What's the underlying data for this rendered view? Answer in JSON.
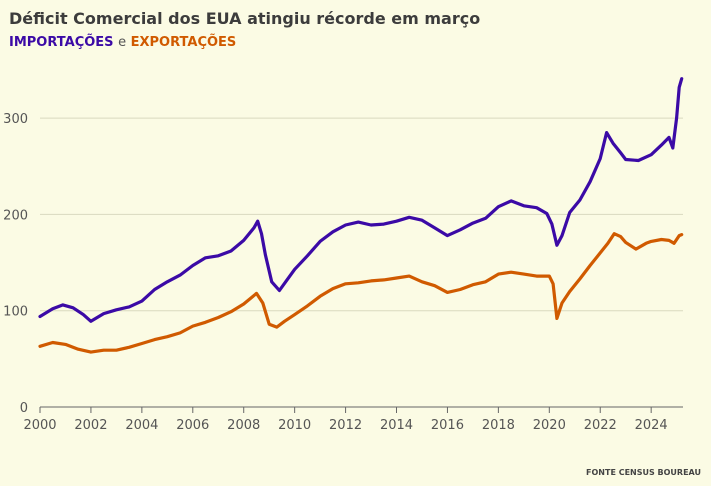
{
  "header": {
    "title": "Déficit Comercial dos EUA atingiu récorde em março",
    "series_import_label": "IMPORTAÇÕES",
    "connector": "e",
    "series_export_label": "EXPORTAÇÕES"
  },
  "footer": {
    "source": "FONTE CENSUS BOUREAU"
  },
  "colors": {
    "imports": "#3b0aa6",
    "exports": "#d05a00",
    "background": "#fbfbe4",
    "grid": "#d9d9bf"
  },
  "chart_data": {
    "type": "line",
    "title": "Déficit Comercial dos EUA atingiu récorde em março",
    "xlabel": "",
    "ylabel": "",
    "xlim": [
      2000,
      2025.25
    ],
    "ylim": [
      0,
      350
    ],
    "x_ticks": [
      2000,
      2002,
      2004,
      2006,
      2008,
      2010,
      2012,
      2014,
      2016,
      2018,
      2020,
      2022,
      2024
    ],
    "y_ticks": [
      0,
      100,
      200,
      300
    ],
    "grid": "horizontal",
    "legend": "subtitle",
    "series": [
      {
        "name": "IMPORTAÇÕES",
        "color": "#3b0aa6",
        "points": [
          [
            2000.0,
            94
          ],
          [
            2000.5,
            102
          ],
          [
            2000.9,
            106
          ],
          [
            2001.3,
            103
          ],
          [
            2001.7,
            96
          ],
          [
            2002.0,
            89
          ],
          [
            2002.5,
            97
          ],
          [
            2003.0,
            101
          ],
          [
            2003.5,
            104
          ],
          [
            2004.0,
            110
          ],
          [
            2004.5,
            122
          ],
          [
            2005.0,
            130
          ],
          [
            2005.5,
            137
          ],
          [
            2006.0,
            147
          ],
          [
            2006.5,
            155
          ],
          [
            2007.0,
            157
          ],
          [
            2007.5,
            162
          ],
          [
            2008.0,
            173
          ],
          [
            2008.4,
            186
          ],
          [
            2008.55,
            193
          ],
          [
            2008.7,
            180
          ],
          [
            2008.85,
            158
          ],
          [
            2009.1,
            130
          ],
          [
            2009.4,
            121
          ],
          [
            2009.7,
            132
          ],
          [
            2010.0,
            143
          ],
          [
            2010.5,
            157
          ],
          [
            2011.0,
            172
          ],
          [
            2011.5,
            182
          ],
          [
            2012.0,
            189
          ],
          [
            2012.5,
            192
          ],
          [
            2013.0,
            189
          ],
          [
            2013.5,
            190
          ],
          [
            2014.0,
            193
          ],
          [
            2014.5,
            197
          ],
          [
            2015.0,
            194
          ],
          [
            2015.5,
            186
          ],
          [
            2016.0,
            178
          ],
          [
            2016.5,
            184
          ],
          [
            2017.0,
            191
          ],
          [
            2017.5,
            196
          ],
          [
            2018.0,
            208
          ],
          [
            2018.5,
            214
          ],
          [
            2019.0,
            209
          ],
          [
            2019.5,
            207
          ],
          [
            2019.9,
            201
          ],
          [
            2020.1,
            190
          ],
          [
            2020.3,
            168
          ],
          [
            2020.5,
            178
          ],
          [
            2020.8,
            202
          ],
          [
            2021.2,
            215
          ],
          [
            2021.6,
            234
          ],
          [
            2022.0,
            258
          ],
          [
            2022.25,
            285
          ],
          [
            2022.5,
            274
          ],
          [
            2022.8,
            264
          ],
          [
            2023.0,
            257
          ],
          [
            2023.5,
            256
          ],
          [
            2024.0,
            262
          ],
          [
            2024.4,
            272
          ],
          [
            2024.7,
            280
          ],
          [
            2024.85,
            269
          ],
          [
            2025.0,
            300
          ],
          [
            2025.1,
            332
          ],
          [
            2025.2,
            341
          ]
        ]
      },
      {
        "name": "EXPORTAÇÕES",
        "color": "#d05a00",
        "points": [
          [
            2000.0,
            63
          ],
          [
            2000.5,
            67
          ],
          [
            2001.0,
            65
          ],
          [
            2001.5,
            60
          ],
          [
            2002.0,
            57
          ],
          [
            2002.5,
            59
          ],
          [
            2003.0,
            59
          ],
          [
            2003.5,
            62
          ],
          [
            2004.0,
            66
          ],
          [
            2004.5,
            70
          ],
          [
            2005.0,
            73
          ],
          [
            2005.5,
            77
          ],
          [
            2006.0,
            84
          ],
          [
            2006.5,
            88
          ],
          [
            2007.0,
            93
          ],
          [
            2007.5,
            99
          ],
          [
            2008.0,
            107
          ],
          [
            2008.5,
            118
          ],
          [
            2008.75,
            108
          ],
          [
            2009.0,
            86
          ],
          [
            2009.3,
            83
          ],
          [
            2009.6,
            89
          ],
          [
            2010.0,
            96
          ],
          [
            2010.5,
            105
          ],
          [
            2011.0,
            115
          ],
          [
            2011.5,
            123
          ],
          [
            2012.0,
            128
          ],
          [
            2012.5,
            129
          ],
          [
            2013.0,
            131
          ],
          [
            2013.5,
            132
          ],
          [
            2014.0,
            134
          ],
          [
            2014.5,
            136
          ],
          [
            2015.0,
            130
          ],
          [
            2015.5,
            126
          ],
          [
            2016.0,
            119
          ],
          [
            2016.5,
            122
          ],
          [
            2017.0,
            127
          ],
          [
            2017.5,
            130
          ],
          [
            2018.0,
            138
          ],
          [
            2018.5,
            140
          ],
          [
            2019.0,
            138
          ],
          [
            2019.5,
            136
          ],
          [
            2020.0,
            136
          ],
          [
            2020.15,
            128
          ],
          [
            2020.3,
            92
          ],
          [
            2020.5,
            108
          ],
          [
            2020.8,
            120
          ],
          [
            2021.2,
            133
          ],
          [
            2021.6,
            147
          ],
          [
            2022.0,
            160
          ],
          [
            2022.3,
            170
          ],
          [
            2022.55,
            180
          ],
          [
            2022.8,
            177
          ],
          [
            2023.0,
            171
          ],
          [
            2023.4,
            164
          ],
          [
            2023.8,
            170
          ],
          [
            2024.0,
            172
          ],
          [
            2024.4,
            174
          ],
          [
            2024.7,
            173
          ],
          [
            2024.9,
            170
          ],
          [
            2025.1,
            178
          ],
          [
            2025.2,
            179
          ]
        ]
      }
    ]
  }
}
